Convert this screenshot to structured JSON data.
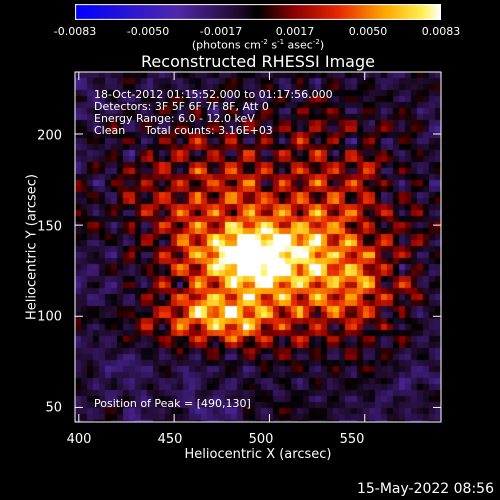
{
  "chart_data": {
    "type": "heatmap",
    "title": "Reconstructed RHESSI Image",
    "xlabel": "Heliocentric X (arcsec)",
    "ylabel": "Heliocentric Y (arcsec)",
    "xlim": [
      398,
      590
    ],
    "ylim": [
      42,
      234
    ],
    "x_ticks": [
      "400",
      "450",
      "500",
      "550"
    ],
    "x_tick_values": [
      400,
      450,
      500,
      550
    ],
    "y_ticks": [
      "50",
      "100",
      "150",
      "200"
    ],
    "y_tick_values": [
      50,
      100,
      150,
      200
    ],
    "colorbar": {
      "range": [
        -0.0083,
        0.0083
      ],
      "ticks": [
        "-0.0083",
        "-0.0050",
        "-0.0017",
        "0.0017",
        "0.0050",
        "0.0083"
      ],
      "tick_values": [
        -0.0083,
        -0.005,
        -0.0017,
        0.0017,
        0.005,
        0.0083
      ],
      "units_prefix": "(photons cm",
      "units_exp1": "-2",
      "units_mid": " s",
      "units_exp2": "-1",
      "units_mid2": " asec",
      "units_exp3": "-2",
      "units_suffix": ")"
    },
    "annotations": {
      "time_range": "18-Oct-2012 01:15:52.000 to 01:17:56.000",
      "detectors": "Detectors: 3F 5F 6F 7F 8F, Att 0",
      "energy_range": "Energy Range: 6.0 - 12.0 keV",
      "method": "Clean",
      "total_counts": "Total counts: 3.16E+03",
      "peak_position": "Position of Peak = [490,130]"
    },
    "peak": {
      "x": 490,
      "y": 130
    },
    "grid": false
  },
  "footer": {
    "timestamp": "15-May-2022 08:56"
  },
  "colors": {
    "background": "#000000",
    "text": "#ffffff"
  }
}
